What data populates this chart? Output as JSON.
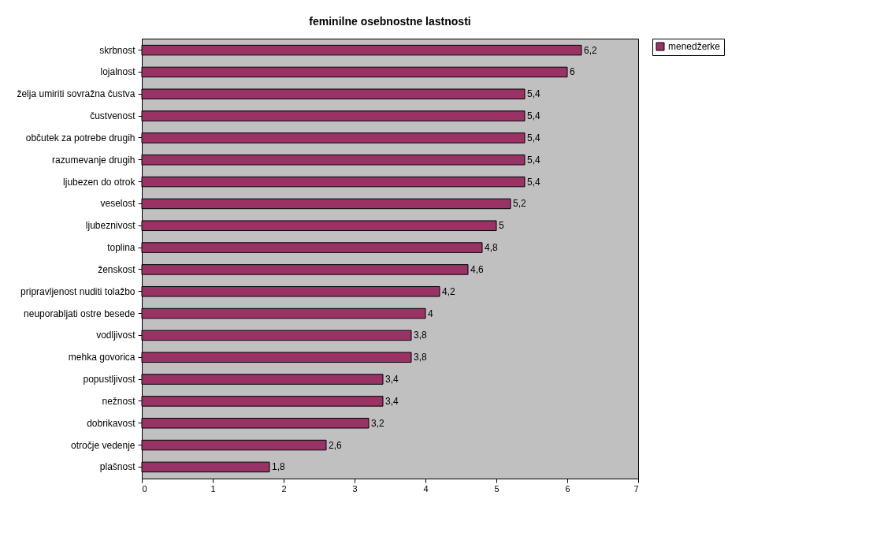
{
  "chart_data": {
    "type": "bar",
    "orientation": "horizontal",
    "title": "feminilne osebnostne lastnosti",
    "categories": [
      "skrbnost",
      "lojalnost",
      "želja umiriti sovražna čustva",
      "čustvenost",
      "občutek za potrebe drugih",
      "razumevanje drugih",
      "ljubezen do otrok",
      "veselost",
      "ljubeznivost",
      "toplina",
      "ženskost",
      "pripravljenost nuditi tolažbo",
      "neuporabljati ostre besede",
      "vodljivost",
      "mehka govorica",
      "popustljivost",
      "nežnost",
      "dobrikavost",
      "otročje vedenje",
      "plašnost"
    ],
    "series": [
      {
        "name": "menedžerke",
        "color": "#993366",
        "values": [
          6.2,
          6,
          5.4,
          5.4,
          5.4,
          5.4,
          5.4,
          5.2,
          5,
          4.8,
          4.6,
          4.2,
          4,
          3.8,
          3.8,
          3.4,
          3.4,
          3.2,
          2.6,
          1.8
        ],
        "value_labels": [
          "6,2",
          "6",
          "5,4",
          "5,4",
          "5,4",
          "5,4",
          "5,4",
          "5,2",
          "5",
          "4,8",
          "4,6",
          "4,2",
          "4",
          "3,8",
          "3,8",
          "3,4",
          "3,4",
          "3,2",
          "2,6",
          "1,8"
        ]
      }
    ],
    "xlim": [
      0,
      7
    ],
    "xticks": [
      0,
      1,
      2,
      3,
      4,
      5,
      6,
      7
    ],
    "grid": false,
    "legend": "right"
  }
}
